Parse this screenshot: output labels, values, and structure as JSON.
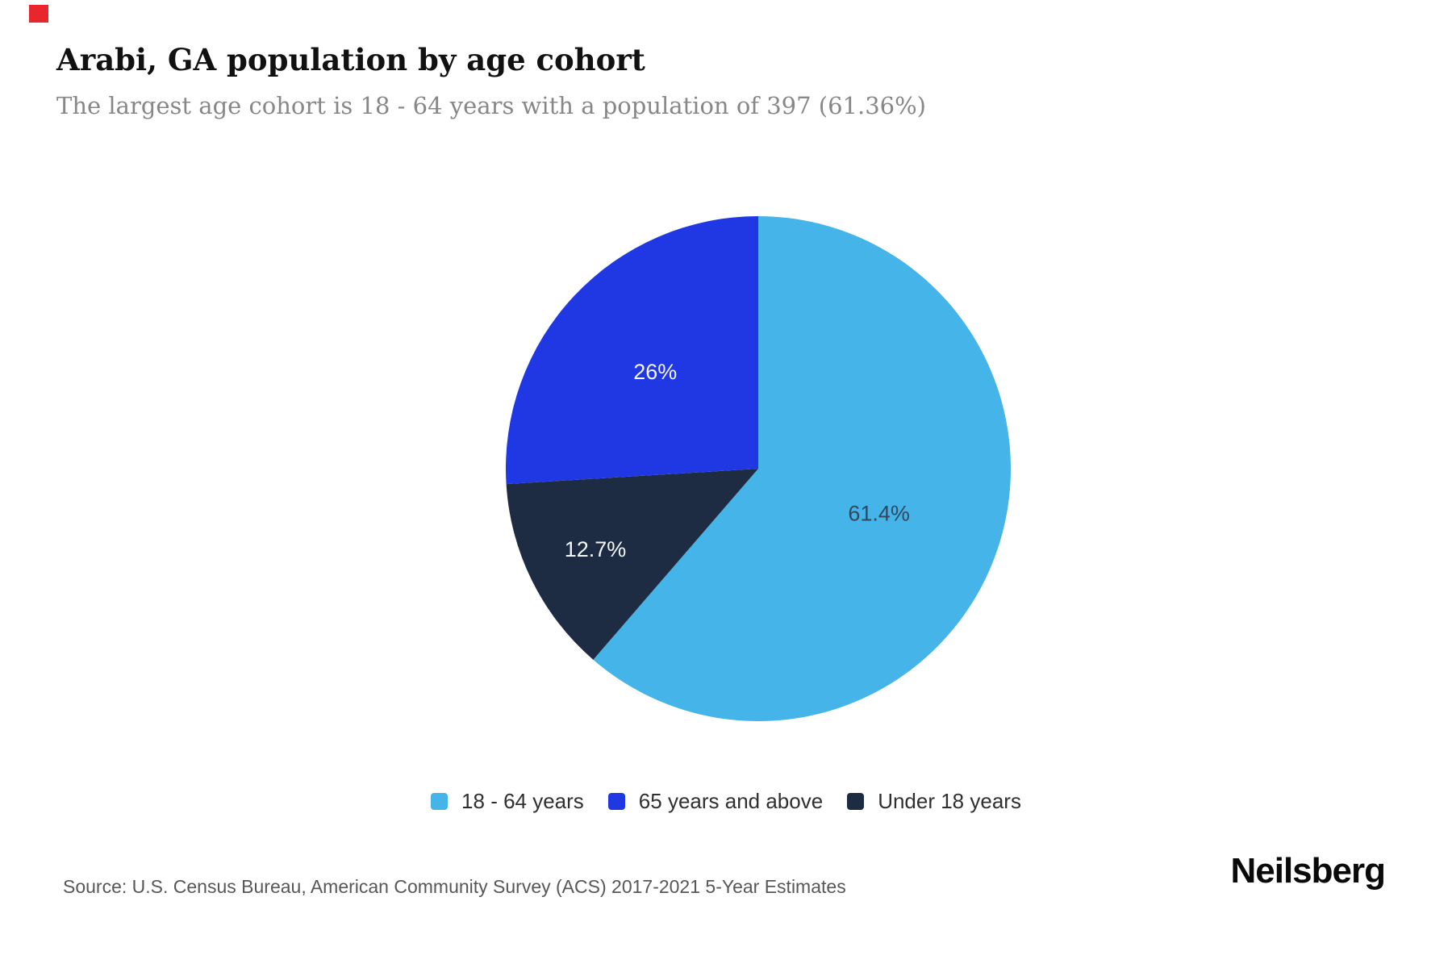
{
  "page": {
    "background": "#ffffff"
  },
  "marker": {
    "color": "#e9262c"
  },
  "header": {
    "title": "Arabi, GA population by age cohort",
    "subtitle": "The largest age cohort is 18 - 64 years with a population of 397 (61.36%)"
  },
  "chart_data": {
    "type": "pie",
    "title": "Arabi, GA population by age cohort",
    "slices": [
      {
        "label": "18 - 64 years",
        "value_pct": 61.4,
        "data_label": "61.4%",
        "color": "#45b4e8",
        "label_color": "#33475e",
        "label_r": 0.51
      },
      {
        "label": "65 years and above",
        "value_pct": 26,
        "data_label": "26%",
        "color": "#2038e3",
        "label_color": "#f4f6f9",
        "label_r": 0.56
      },
      {
        "label": "Under 18 years",
        "value_pct": 12.7,
        "data_label": "12.7%",
        "color": "#1d2c42",
        "label_color": "#f4f6f9",
        "label_r": 0.72
      }
    ],
    "start_angle_deg": 0,
    "draw_order": [
      0,
      2,
      1
    ],
    "legend_position": "bottom",
    "grid": false
  },
  "footer": {
    "source": "Source: U.S. Census Bureau, American Community Survey (ACS) 2017-2021 5-Year Estimates",
    "brand": "Neilsberg"
  }
}
